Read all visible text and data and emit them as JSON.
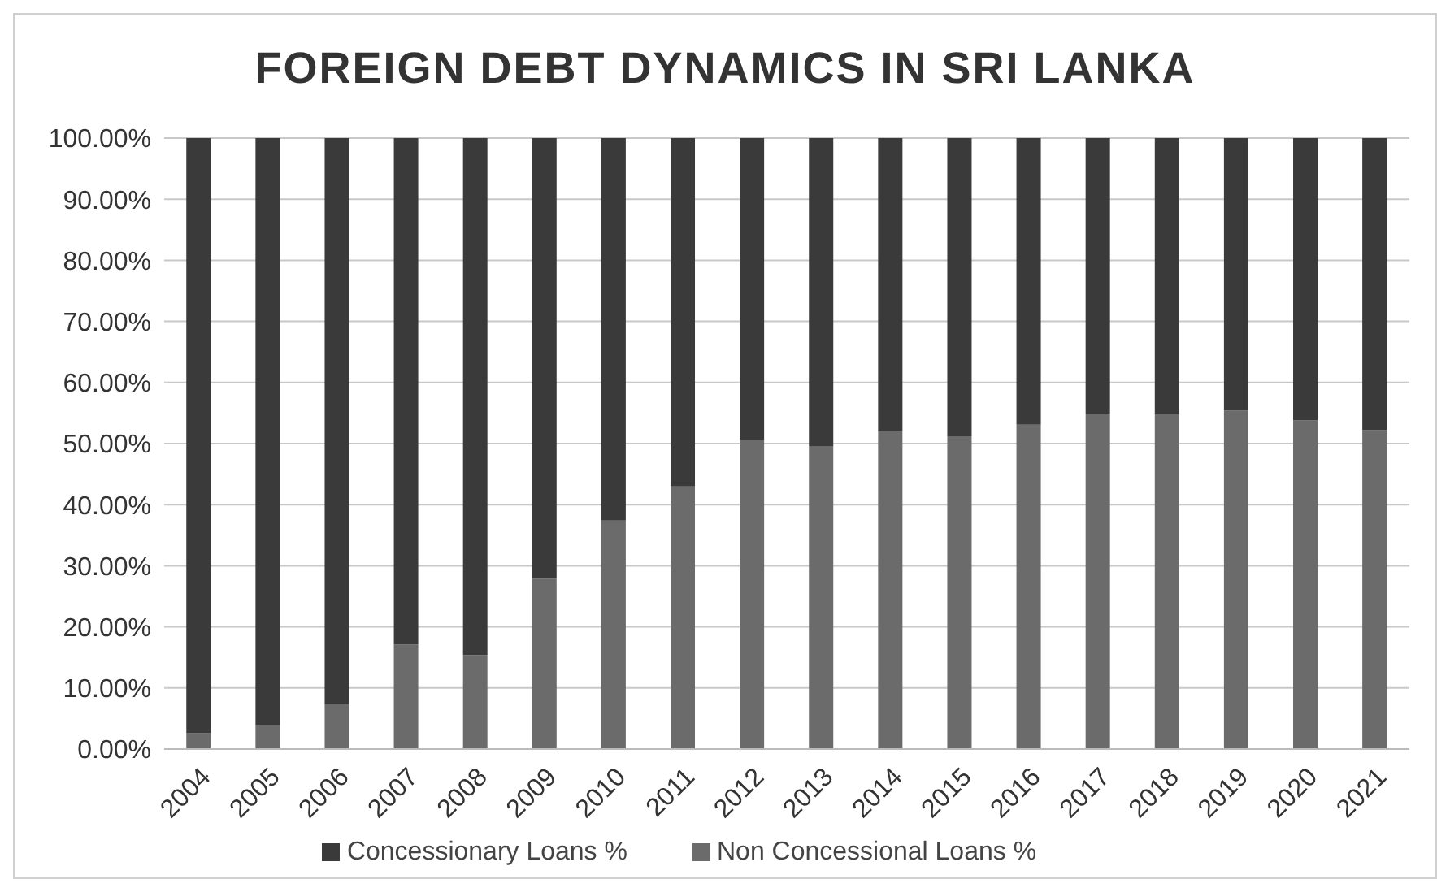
{
  "chart_data": {
    "type": "bar",
    "title": "FOREIGN DEBT DYNAMICS IN SRI LANKA",
    "stacked": true,
    "categories": [
      "2004",
      "2005",
      "2006",
      "2007",
      "2008",
      "2009",
      "2010",
      "2011",
      "2012",
      "2013",
      "2014",
      "2015",
      "2016",
      "2017",
      "2018",
      "2019",
      "2020",
      "2021"
    ],
    "series": [
      {
        "name": "Non Concessional Loans %",
        "color": "#6b6b6b",
        "values": [
          2.6,
          3.9,
          7.3,
          17.1,
          15.4,
          27.9,
          37.4,
          43.0,
          50.6,
          49.6,
          52.1,
          51.2,
          53.1,
          54.9,
          54.9,
          55.4,
          53.8,
          52.2
        ]
      },
      {
        "name": "Concessionary Loans %",
        "color": "#3a3a3a",
        "values": [
          97.4,
          96.1,
          92.7,
          82.9,
          84.6,
          72.1,
          62.6,
          57.0,
          49.4,
          50.4,
          47.9,
          48.8,
          46.9,
          45.1,
          45.1,
          44.6,
          46.2,
          47.8
        ]
      }
    ],
    "ylim": [
      0,
      100
    ],
    "yticks": [
      {
        "value": 0,
        "label": "0.00%"
      },
      {
        "value": 10,
        "label": "10.00%"
      },
      {
        "value": 20,
        "label": "20.00%"
      },
      {
        "value": 30,
        "label": "30.00%"
      },
      {
        "value": 40,
        "label": "40.00%"
      },
      {
        "value": 50,
        "label": "50.00%"
      },
      {
        "value": 60,
        "label": "60.00%"
      },
      {
        "value": 70,
        "label": "70.00%"
      },
      {
        "value": 80,
        "label": "80.00%"
      },
      {
        "value": 90,
        "label": "90.00%"
      },
      {
        "value": 100,
        "label": "100.00%"
      }
    ],
    "grid": "y",
    "legend": "bottom"
  }
}
